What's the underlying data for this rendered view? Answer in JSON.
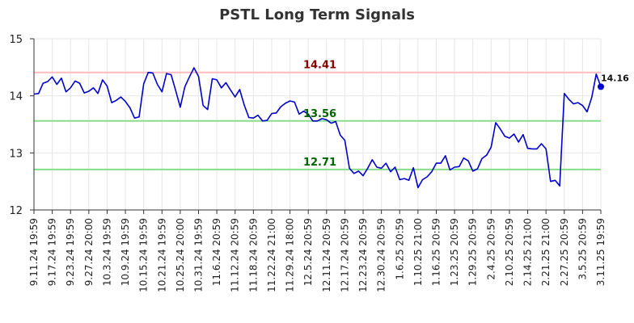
{
  "chart_data": {
    "type": "line",
    "title": "PSTL Long Term Signals",
    "ylim": [
      12,
      15
    ],
    "yticks": [
      12,
      13,
      14,
      15
    ],
    "grid": true,
    "line_color": "#0000cc",
    "x_tick_labels": [
      "9.11.24 19:59",
      "9.17.24 19:59",
      "9.23.24 19:59",
      "9.27.24 20:00",
      "10.3.24 19:59",
      "10.9.24 19:59",
      "10.15.24 19:59",
      "10.21.24 19:59",
      "10.25.24 20:00",
      "10.31.24 19:59",
      "11.6.24 20:59",
      "11.12.24 20:59",
      "11.18.24 20:59",
      "11.22.24 21:00",
      "11.29.24 18:00",
      "12.5.24 20:59",
      "12.11.24 20:59",
      "12.17.24 20:59",
      "12.23.24 20:59",
      "12.30.24 20:59",
      "1.6.25 20:59",
      "1.10.25 21:00",
      "1.16.25 20:59",
      "1.23.25 20:59",
      "1.29.25 20:59",
      "2.4.25 20:59",
      "2.10.25 20:59",
      "2.14.25 21:00",
      "2.21.25 21:00",
      "2.27.25 20:59",
      "3.5.25 20:59",
      "3.11.25 19:59"
    ],
    "values": [
      14.03,
      14.04,
      14.22,
      14.25,
      14.33,
      14.2,
      14.31,
      14.07,
      14.14,
      14.26,
      14.22,
      14.05,
      14.08,
      14.14,
      14.04,
      14.28,
      14.17,
      13.88,
      13.92,
      13.98,
      13.9,
      13.79,
      13.61,
      13.63,
      14.21,
      14.41,
      14.4,
      14.2,
      14.07,
      14.39,
      14.37,
      14.09,
      13.8,
      14.16,
      14.33,
      14.49,
      14.34,
      13.83,
      13.76,
      14.3,
      14.28,
      14.14,
      14.23,
      14.1,
      13.98,
      14.11,
      13.84,
      13.62,
      13.61,
      13.66,
      13.56,
      13.57,
      13.69,
      13.7,
      13.81,
      13.87,
      13.91,
      13.89,
      13.68,
      13.73,
      13.68,
      13.56,
      13.56,
      13.6,
      13.58,
      13.52,
      13.55,
      13.31,
      13.22,
      12.73,
      12.64,
      12.68,
      12.6,
      12.73,
      12.88,
      12.75,
      12.73,
      12.82,
      12.67,
      12.75,
      12.53,
      12.55,
      12.52,
      12.74,
      12.39,
      12.53,
      12.58,
      12.67,
      12.82,
      12.82,
      12.95,
      12.7,
      12.75,
      12.76,
      12.91,
      12.86,
      12.68,
      12.72,
      12.9,
      12.96,
      13.1,
      13.53,
      13.42,
      13.29,
      13.26,
      13.33,
      13.19,
      13.32,
      13.08,
      13.07,
      13.07,
      13.16,
      13.07,
      12.5,
      12.52,
      12.42,
      14.04,
      13.94,
      13.86,
      13.88,
      13.83,
      13.72,
      13.97,
      14.38,
      14.16
    ],
    "levels": [
      {
        "value": 14.41,
        "label": "14.41",
        "line_color": "#ffbbbb",
        "text_color": "#8b0000"
      },
      {
        "value": 13.56,
        "label": "13.56",
        "line_color": "#88dd88",
        "text_color": "#006400"
      },
      {
        "value": 12.71,
        "label": "12.71",
        "line_color": "#88dd88",
        "text_color": "#006400"
      }
    ],
    "last_point_label": "14.16"
  }
}
